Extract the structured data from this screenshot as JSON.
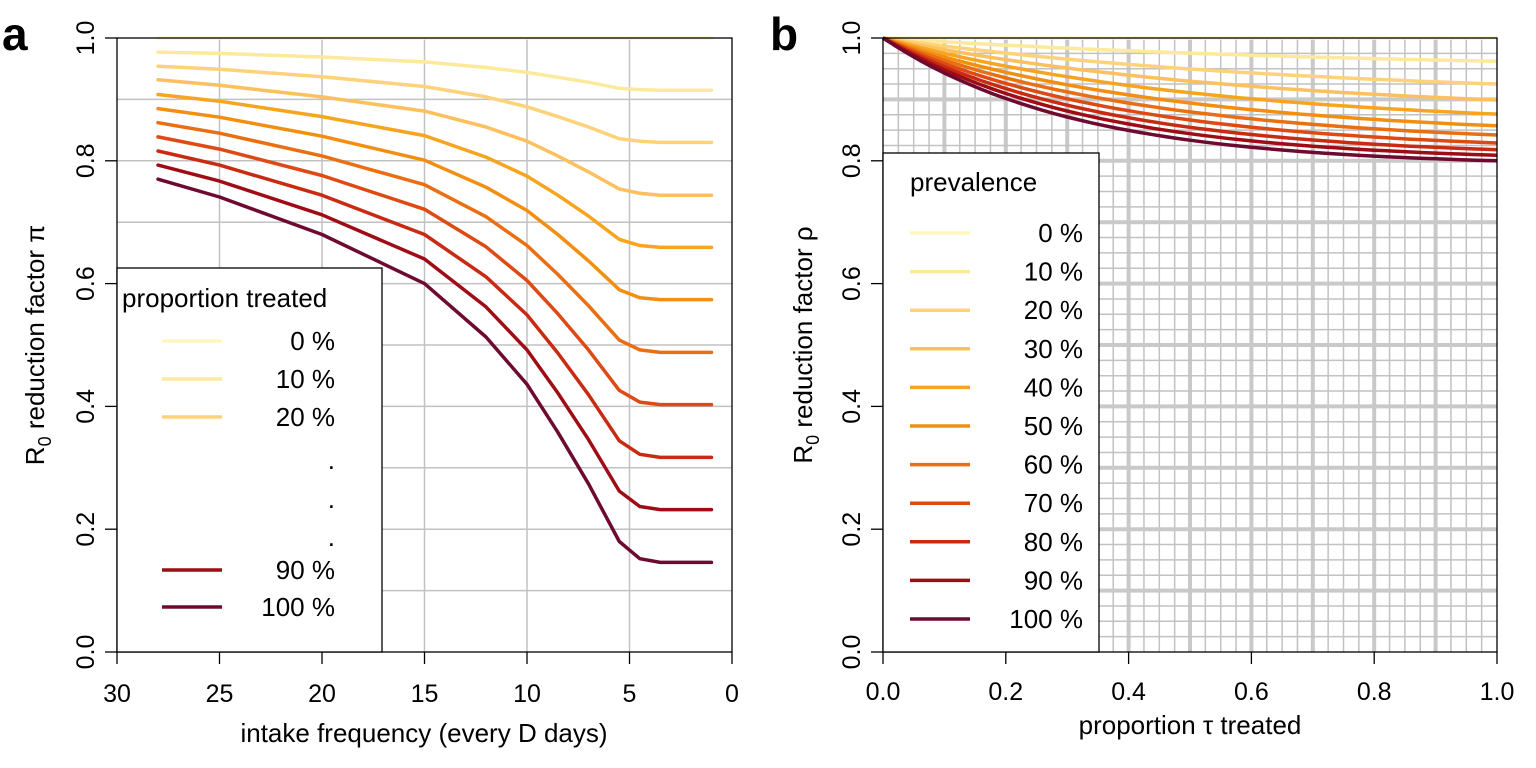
{
  "chart_data": [
    {
      "type": "line",
      "panel_label": "a",
      "xlabel": "intake frequency (every D days)",
      "ylabel": "R",
      "ylabel_sub": "0",
      "ylabel_rest": " reduction factor π",
      "xlim": [
        30,
        0
      ],
      "ylim": [
        0,
        1
      ],
      "x_ticks": [
        "30",
        "25",
        "20",
        "15",
        "10",
        "5",
        "0"
      ],
      "y_ticks": [
        "0.0",
        "0.2",
        "0.4",
        "0.6",
        "0.8",
        "1.0"
      ],
      "x_tick_values": [
        30,
        25,
        20,
        15,
        10,
        5,
        0
      ],
      "y_tick_values": [
        0,
        0.2,
        0.4,
        0.6,
        0.8,
        1.0
      ],
      "grid_x": [
        25,
        20,
        15,
        10,
        5
      ],
      "grid_y": [
        0.1,
        0.2,
        0.3,
        0.4,
        0.5,
        0.6,
        0.7,
        0.8,
        0.9
      ],
      "grid": true,
      "legend": {
        "title": "proportion treated",
        "position": "bottom-left",
        "entries": [
          "0 %",
          "10 %",
          "20 %",
          ".",
          ".",
          ".",
          "90 %",
          "100 %"
        ],
        "entry_colors": [
          "#fff7bf",
          "#fde99b",
          "#fdd27a",
          null,
          null,
          null,
          "#9f0c15",
          "#6e0a2f"
        ]
      },
      "series": [
        {
          "color": "#fff7bf",
          "points": [
            [
              28,
              1.0
            ],
            [
              1,
              1.0
            ]
          ]
        },
        {
          "color": "#fde99b",
          "points": [
            [
              28,
              0.977
            ],
            [
              25,
              0.975
            ],
            [
              20,
              0.969
            ],
            [
              15,
              0.961
            ],
            [
              12,
              0.952
            ],
            [
              10,
              0.944
            ],
            [
              8.5,
              0.936
            ],
            [
              7,
              0.928
            ],
            [
              5.5,
              0.918
            ],
            [
              4.5,
              0.916
            ],
            [
              3.5,
              0.915
            ],
            [
              1,
              0.915
            ]
          ]
        },
        {
          "color": "#fdd27a",
          "points": [
            [
              28,
              0.954
            ],
            [
              25,
              0.949
            ],
            [
              20,
              0.937
            ],
            [
              15,
              0.921
            ],
            [
              12,
              0.904
            ],
            [
              10,
              0.888
            ],
            [
              8.5,
              0.872
            ],
            [
              7,
              0.855
            ],
            [
              5.5,
              0.836
            ],
            [
              4.5,
              0.832
            ],
            [
              3.5,
              0.83
            ],
            [
              1,
              0.83
            ]
          ]
        },
        {
          "color": "#fcc05e",
          "points": [
            [
              28,
              0.932
            ],
            [
              25,
              0.923
            ],
            [
              20,
              0.904
            ],
            [
              15,
              0.881
            ],
            [
              12,
              0.855
            ],
            [
              10,
              0.832
            ],
            [
              8.5,
              0.808
            ],
            [
              7,
              0.782
            ],
            [
              5.5,
              0.754
            ],
            [
              4.5,
              0.747
            ],
            [
              3.5,
              0.744
            ],
            [
              1,
              0.744
            ]
          ]
        },
        {
          "color": "#f7a51f",
          "points": [
            [
              28,
              0.908
            ],
            [
              25,
              0.897
            ],
            [
              20,
              0.872
            ],
            [
              15,
              0.841
            ],
            [
              12,
              0.806
            ],
            [
              10,
              0.775
            ],
            [
              8.5,
              0.744
            ],
            [
              7,
              0.71
            ],
            [
              5.5,
              0.672
            ],
            [
              4.5,
              0.662
            ],
            [
              3.5,
              0.659
            ],
            [
              1,
              0.659
            ]
          ]
        },
        {
          "color": "#f28f12",
          "points": [
            [
              28,
              0.885
            ],
            [
              25,
              0.871
            ],
            [
              20,
              0.84
            ],
            [
              15,
              0.801
            ],
            [
              12,
              0.757
            ],
            [
              10,
              0.719
            ],
            [
              8.5,
              0.68
            ],
            [
              7,
              0.637
            ],
            [
              5.5,
              0.59
            ],
            [
              4.5,
              0.577
            ],
            [
              3.5,
              0.574
            ],
            [
              1,
              0.574
            ]
          ]
        },
        {
          "color": "#e96f12",
          "points": [
            [
              28,
              0.862
            ],
            [
              25,
              0.845
            ],
            [
              20,
              0.808
            ],
            [
              15,
              0.761
            ],
            [
              12,
              0.709
            ],
            [
              10,
              0.662
            ],
            [
              8.5,
              0.615
            ],
            [
              7,
              0.564
            ],
            [
              5.5,
              0.508
            ],
            [
              4.5,
              0.492
            ],
            [
              3.5,
              0.488
            ],
            [
              1,
              0.488
            ]
          ]
        },
        {
          "color": "#de4a14",
          "points": [
            [
              28,
              0.839
            ],
            [
              25,
              0.819
            ],
            [
              20,
              0.776
            ],
            [
              15,
              0.721
            ],
            [
              12,
              0.66
            ],
            [
              10,
              0.605
            ],
            [
              8.5,
              0.551
            ],
            [
              7,
              0.492
            ],
            [
              5.5,
              0.426
            ],
            [
              4.5,
              0.407
            ],
            [
              3.5,
              0.403
            ],
            [
              1,
              0.403
            ]
          ]
        },
        {
          "color": "#c92a12",
          "points": [
            [
              28,
              0.816
            ],
            [
              25,
              0.793
            ],
            [
              20,
              0.744
            ],
            [
              15,
              0.68
            ],
            [
              12,
              0.611
            ],
            [
              10,
              0.549
            ],
            [
              8.5,
              0.487
            ],
            [
              7,
              0.419
            ],
            [
              5.5,
              0.344
            ],
            [
              4.5,
              0.322
            ],
            [
              3.5,
              0.317
            ],
            [
              1,
              0.317
            ]
          ]
        },
        {
          "color": "#9f0c15",
          "points": [
            [
              28,
              0.793
            ],
            [
              25,
              0.767
            ],
            [
              20,
              0.712
            ],
            [
              15,
              0.64
            ],
            [
              12,
              0.562
            ],
            [
              10,
              0.492
            ],
            [
              8.5,
              0.422
            ],
            [
              7,
              0.346
            ],
            [
              5.5,
              0.262
            ],
            [
              4.5,
              0.237
            ],
            [
              3.5,
              0.232
            ],
            [
              1,
              0.232
            ]
          ]
        },
        {
          "color": "#6e0a2f",
          "points": [
            [
              28,
              0.77
            ],
            [
              25,
              0.741
            ],
            [
              20,
              0.68
            ],
            [
              15,
              0.6
            ],
            [
              12,
              0.513
            ],
            [
              10,
              0.436
            ],
            [
              8.5,
              0.358
            ],
            [
              7,
              0.274
            ],
            [
              5.5,
              0.18
            ],
            [
              4.5,
              0.152
            ],
            [
              3.5,
              0.146
            ],
            [
              1,
              0.146
            ]
          ]
        }
      ]
    },
    {
      "type": "line",
      "panel_label": "b",
      "xlabel": "proportion τ treated",
      "ylabel": "R",
      "ylabel_sub": "0",
      "ylabel_rest": " reduction factor ρ",
      "xlim": [
        0,
        1
      ],
      "ylim": [
        0,
        1
      ],
      "x_ticks": [
        "0.0",
        "0.2",
        "0.4",
        "0.6",
        "0.8",
        "1.0"
      ],
      "y_ticks": [
        "0.0",
        "0.2",
        "0.4",
        "0.6",
        "0.8",
        "1.0"
      ],
      "x_tick_values": [
        0,
        0.2,
        0.4,
        0.6,
        0.8,
        1.0
      ],
      "y_tick_values": [
        0,
        0.2,
        0.4,
        0.6,
        0.8,
        1.0
      ],
      "grid": true,
      "legend": {
        "title": "prevalence",
        "position": "bottom-left",
        "entries": [
          "0 %",
          "10 %",
          "20 %",
          "30 %",
          "40 %",
          "50 %",
          "60 %",
          "70 %",
          "80 %",
          "90 %",
          "100 %"
        ],
        "entry_colors": [
          "#fff7bf",
          "#fde99b",
          "#fdd27a",
          "#fcc05e",
          "#f7a51f",
          "#f28f12",
          "#e96f12",
          "#de4a14",
          "#c92a12",
          "#9f0c15",
          "#6e0a2f"
        ]
      },
      "series": [
        {
          "color": "#fff7bf",
          "end": 1.0,
          "k": 0
        },
        {
          "color": "#fde99b",
          "end": 0.962,
          "k": 0.1
        },
        {
          "color": "#fdd27a",
          "end": 0.925,
          "k": 0.2
        },
        {
          "color": "#fcc05e",
          "end": 0.899,
          "k": 0.3
        },
        {
          "color": "#f7a51f",
          "end": 0.876,
          "k": 0.4
        },
        {
          "color": "#f28f12",
          "end": 0.857,
          "k": 0.5
        },
        {
          "color": "#e96f12",
          "end": 0.842,
          "k": 0.6
        },
        {
          "color": "#de4a14",
          "end": 0.829,
          "k": 0.7
        },
        {
          "color": "#c92a12",
          "end": 0.818,
          "k": 0.8
        },
        {
          "color": "#9f0c15",
          "end": 0.809,
          "k": 0.9
        },
        {
          "color": "#6e0a2f",
          "end": 0.8,
          "k": 1.0
        }
      ]
    }
  ]
}
